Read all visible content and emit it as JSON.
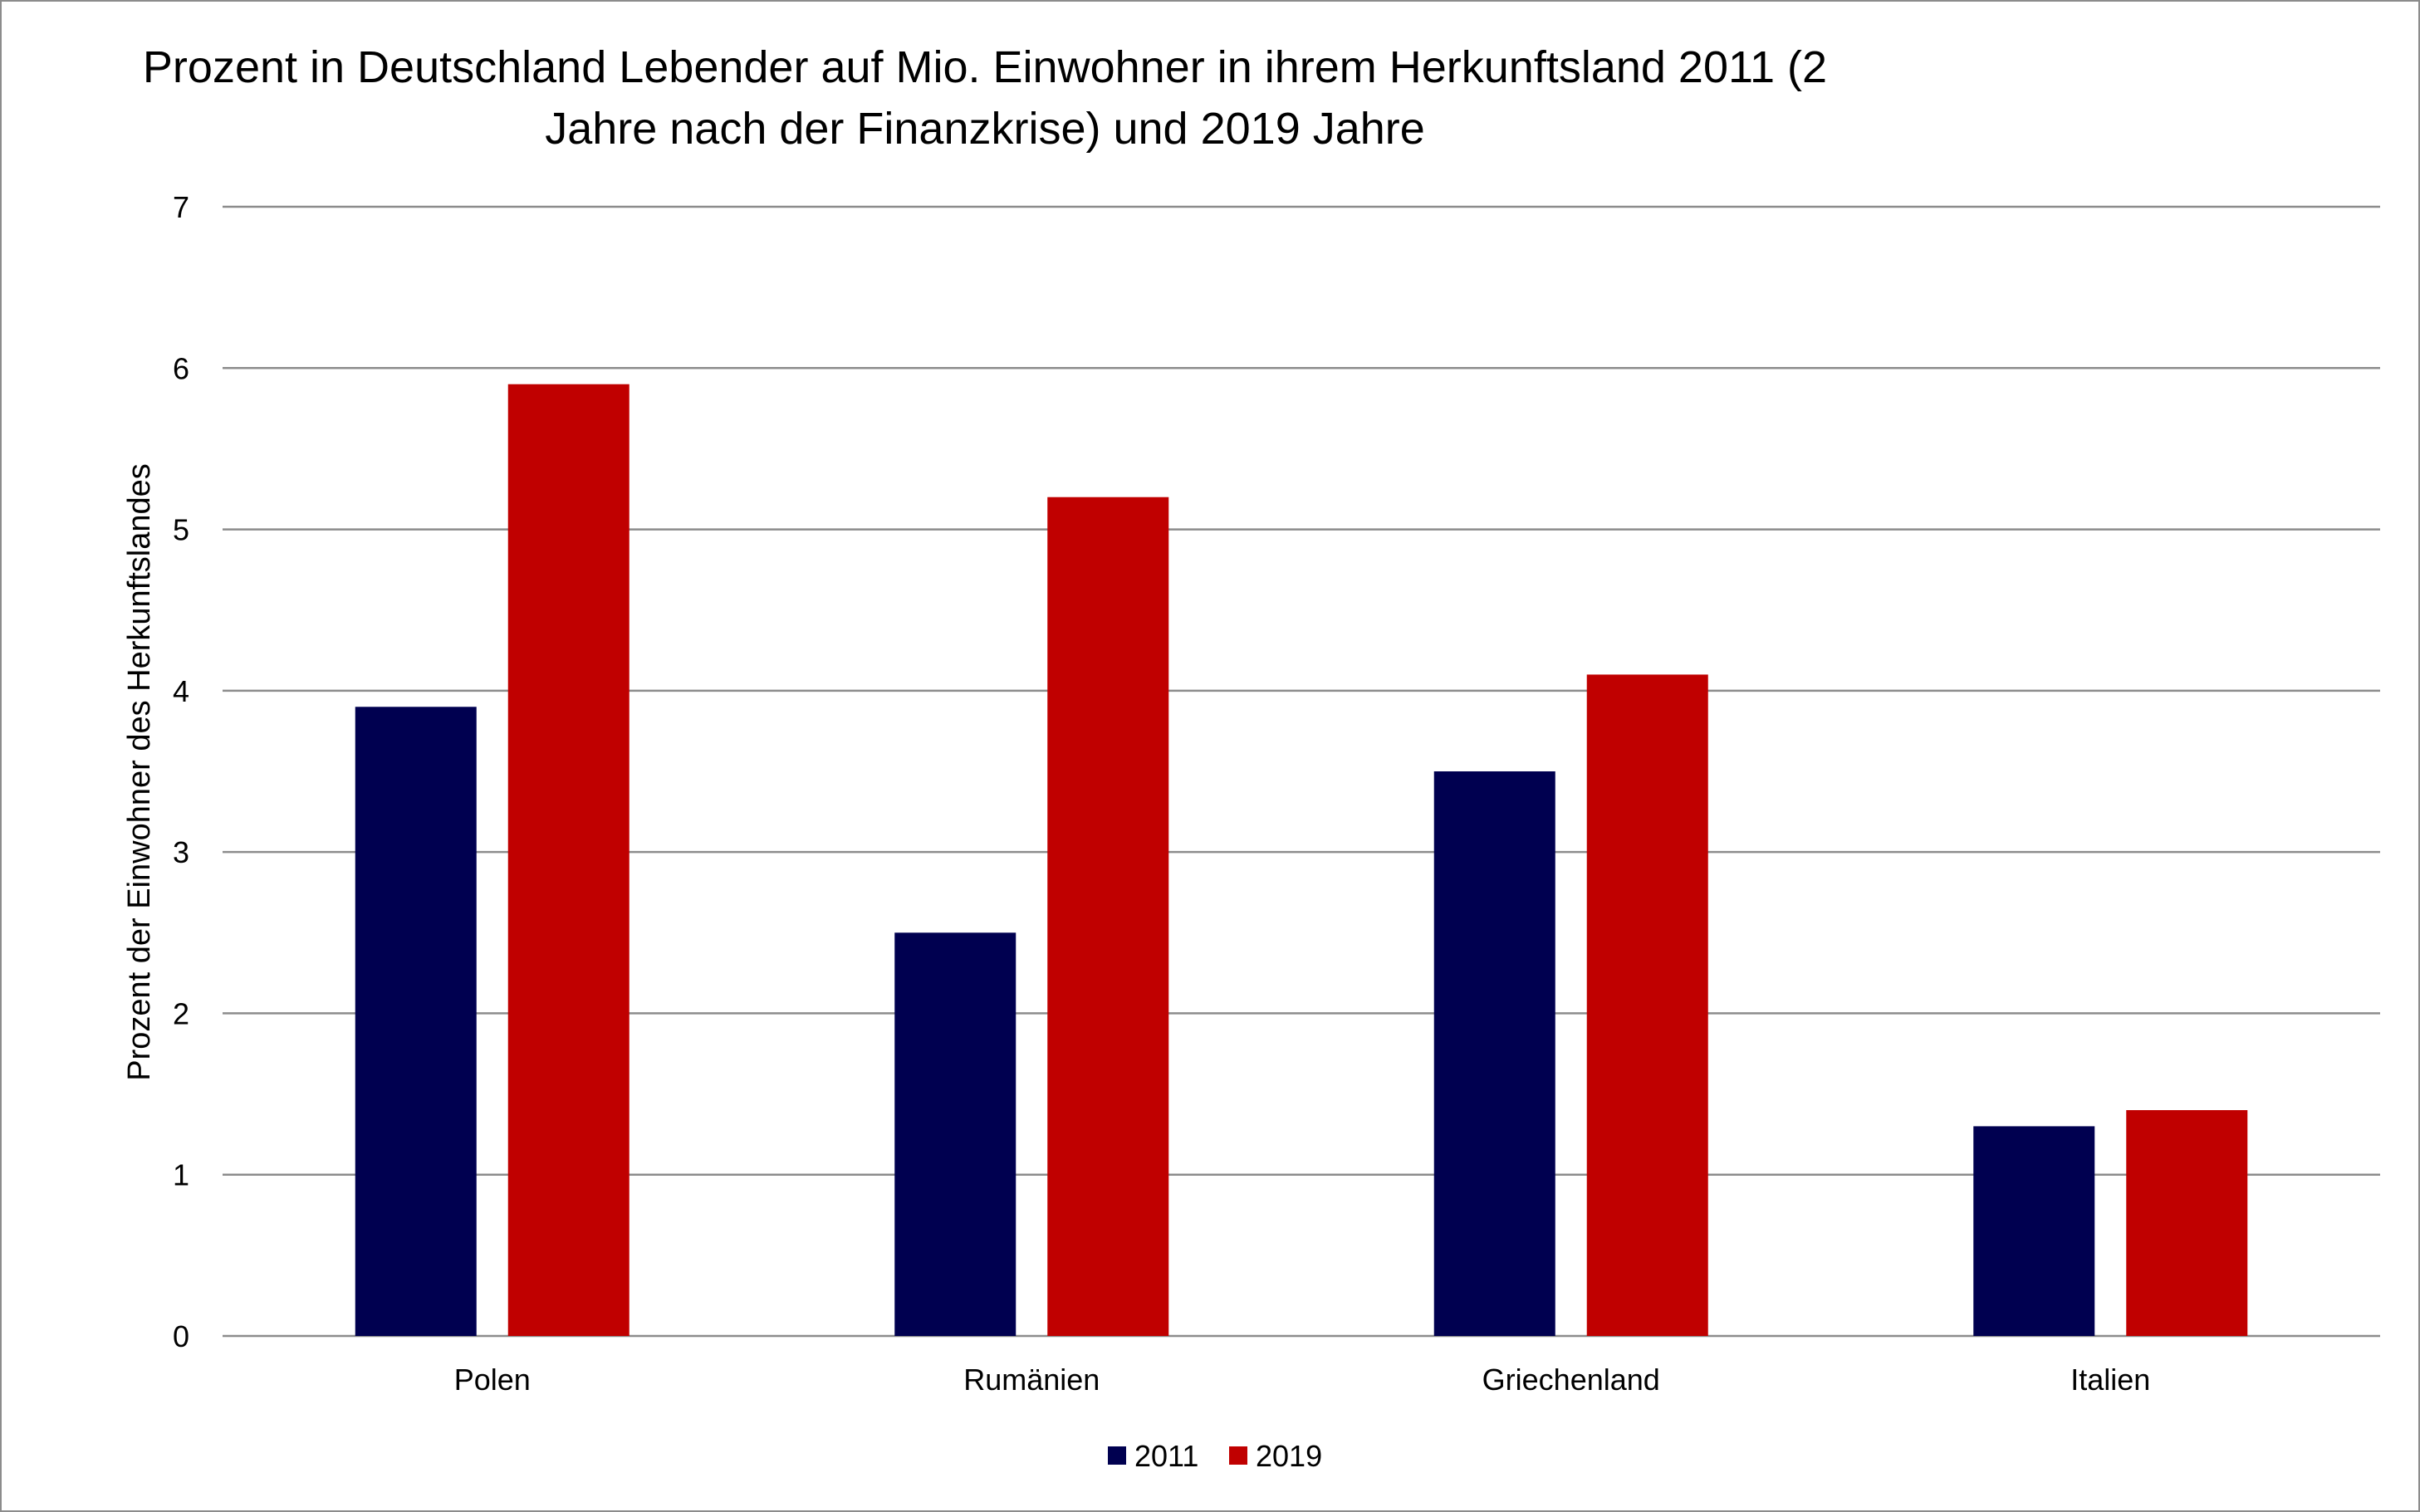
{
  "chart_data": {
    "type": "bar",
    "title": "Prozent in Deutschland Lebender auf Mio. Einwohner in ihrem Herkunftsland 2011 (2 Jahre nach der Finanzkrise) und 2019 Jahre",
    "title_lines": [
      "Prozent in Deutschland Lebender auf Mio. Einwohner in ihrem Herkunftsland 2011 (2",
      "Jahre nach der Finanzkrise) und 2019 Jahre"
    ],
    "xlabel": "",
    "ylabel": "Prozent der Einwohner des Herkunftslandes",
    "categories": [
      "Polen",
      "Rumänien",
      "Griechenland",
      "Italien"
    ],
    "series": [
      {
        "name": "2011",
        "values": [
          3.9,
          2.5,
          3.5,
          1.3
        ],
        "color": "#000050"
      },
      {
        "name": "2019",
        "values": [
          5.9,
          5.2,
          4.1,
          1.4
        ],
        "color": "#C00000"
      }
    ],
    "ylim": [
      0,
      7
    ],
    "yticks": [
      0,
      1,
      2,
      3,
      4,
      5,
      6,
      7
    ],
    "grid": true,
    "legend_position": "bottom"
  }
}
